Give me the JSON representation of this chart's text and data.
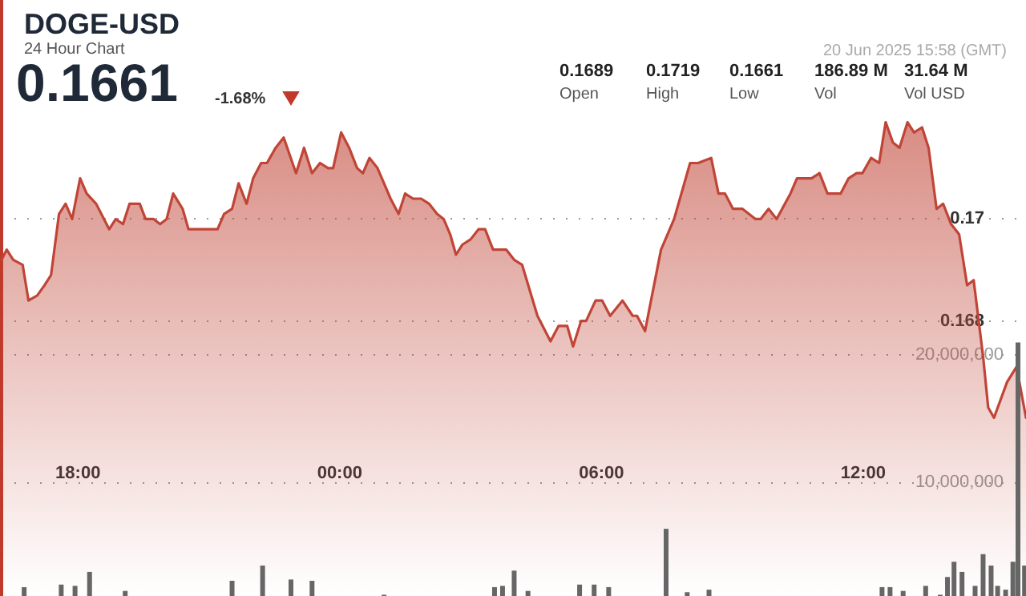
{
  "chart_data": {
    "type": "area",
    "title": "DOGE-USD",
    "subtitle": "24 Hour Chart",
    "annotations": [
      "0.1661",
      "-1.68%",
      "20 Jun 2025 15:58 (GMT)",
      "0.1689",
      "Open",
      "0.1719",
      "High",
      "0.1661",
      "Low",
      "186.89 M",
      "Vol",
      "31.64 M",
      "Vol USD"
    ],
    "xlim": [
      "2025-06-19T16:15",
      "2025-06-20T15:44"
    ],
    "xticks": [
      {
        "value": "2025-06-19T18:00",
        "label": "18:00"
      },
      {
        "value": "2025-06-20T00:00",
        "label": "00:00"
      },
      {
        "value": "2025-06-20T06:00",
        "label": "06:00"
      },
      {
        "value": "2025-06-20T12:00",
        "label": "12:00"
      }
    ],
    "ylim": [
      0.1626,
      0.1743
    ],
    "yticks": [
      0.168,
      0.17
    ],
    "y2lim": [
      1000000,
      48000000
    ],
    "y2ticks": [
      {
        "value": 10000000,
        "label": "10,000,000"
      },
      {
        "value": 20000000,
        "label": "20,000,000"
      }
    ],
    "grid": "y",
    "marker": "none",
    "line_style": "solid",
    "series": [
      {
        "color": "#c04537",
        "x": [
          "2025-06-19T16:15",
          "2025-06-19T16:22",
          "2025-06-19T16:31",
          "2025-06-19T16:44",
          "2025-06-19T16:52",
          "2025-06-19T17:04",
          "2025-06-19T17:14",
          "2025-06-19T17:23",
          "2025-06-19T17:34",
          "2025-06-19T17:43",
          "2025-06-19T17:52",
          "2025-06-19T18:03",
          "2025-06-19T18:12",
          "2025-06-19T18:25",
          "2025-06-19T18:43",
          "2025-06-19T18:52",
          "2025-06-19T19:02",
          "2025-06-19T19:11",
          "2025-06-19T19:25",
          "2025-06-19T19:33",
          "2025-06-19T19:44",
          "2025-06-19T19:53",
          "2025-06-19T20:02",
          "2025-06-19T20:11",
          "2025-06-19T20:24",
          "2025-06-19T20:32",
          "2025-06-19T20:44",
          "2025-06-19T21:01",
          "2025-06-19T21:12",
          "2025-06-19T21:21",
          "2025-06-19T21:32",
          "2025-06-19T21:41",
          "2025-06-19T21:52",
          "2025-06-19T22:01",
          "2025-06-19T22:12",
          "2025-06-19T22:20",
          "2025-06-19T22:32",
          "2025-06-19T22:43",
          "2025-06-19T23:00",
          "2025-06-19T23:11",
          "2025-06-19T23:22",
          "2025-06-19T23:33",
          "2025-06-19T23:44",
          "2025-06-19T23:51",
          "2025-06-20T00:02",
          "2025-06-20T00:13",
          "2025-06-20T00:24",
          "2025-06-20T00:32",
          "2025-06-20T00:41",
          "2025-06-20T00:52",
          "2025-06-20T01:01",
          "2025-06-20T01:10",
          "2025-06-20T01:21",
          "2025-06-20T01:30",
          "2025-06-20T01:41",
          "2025-06-20T01:52",
          "2025-06-20T02:03",
          "2025-06-20T02:14",
          "2025-06-20T02:23",
          "2025-06-20T02:32",
          "2025-06-20T02:40",
          "2025-06-20T02:49",
          "2025-06-20T03:00",
          "2025-06-20T03:11",
          "2025-06-20T03:20",
          "2025-06-20T03:31",
          "2025-06-20T03:49",
          "2025-06-20T04:00",
          "2025-06-20T04:11",
          "2025-06-20T04:32",
          "2025-06-20T04:50",
          "2025-06-20T05:01",
          "2025-06-20T05:13",
          "2025-06-20T05:21",
          "2025-06-20T05:32",
          "2025-06-20T05:39",
          "2025-06-20T05:52",
          "2025-06-20T06:01",
          "2025-06-20T06:12",
          "2025-06-20T06:29",
          "2025-06-20T06:43",
          "2025-06-20T06:49",
          "2025-06-20T07:00",
          "2025-06-20T07:22",
          "2025-06-20T07:40",
          "2025-06-20T08:02",
          "2025-06-20T08:13",
          "2025-06-20T08:31",
          "2025-06-20T08:41",
          "2025-06-20T08:50",
          "2025-06-20T09:01",
          "2025-06-20T09:14",
          "2025-06-20T09:32",
          "2025-06-20T09:39",
          "2025-06-20T09:50",
          "2025-06-20T10:01",
          "2025-06-20T10:20",
          "2025-06-20T10:29",
          "2025-06-20T10:43",
          "2025-06-20T10:49",
          "2025-06-20T11:00",
          "2025-06-20T11:11",
          "2025-06-20T11:29",
          "2025-06-20T11:40",
          "2025-06-20T11:51",
          "2025-06-20T11:59",
          "2025-06-20T12:11",
          "2025-06-20T12:22",
          "2025-06-20T12:31",
          "2025-06-20T12:41",
          "2025-06-20T12:50",
          "2025-06-20T13:01",
          "2025-06-20T13:10",
          "2025-06-20T13:21",
          "2025-06-20T13:30",
          "2025-06-20T13:41",
          "2025-06-20T13:50",
          "2025-06-20T14:01",
          "2025-06-20T14:12",
          "2025-06-20T14:23",
          "2025-06-20T14:32",
          "2025-06-20T14:45",
          "2025-06-20T14:52",
          "2025-06-20T15:00",
          "2025-06-20T15:18",
          "2025-06-20T15:31",
          "2025-06-20T15:44"
        ],
        "values": [
          0.1692,
          0.1694,
          0.1692,
          0.1691,
          0.1684,
          0.1685,
          0.1687,
          0.1689,
          0.1701,
          0.1703,
          0.17,
          0.1708,
          0.1705,
          0.1703,
          0.1698,
          0.17,
          0.1699,
          0.1703,
          0.1703,
          0.17,
          0.17,
          0.1699,
          0.17,
          0.1705,
          0.1702,
          0.1698,
          0.1698,
          0.1698,
          0.1698,
          0.1701,
          0.1702,
          0.1707,
          0.1703,
          0.1708,
          0.1711,
          0.1711,
          0.1714,
          0.1716,
          0.1709,
          0.1714,
          0.1709,
          0.1711,
          0.171,
          0.171,
          0.1717,
          0.1714,
          0.171,
          0.1709,
          0.1712,
          0.171,
          0.1707,
          0.1704,
          0.1701,
          0.1705,
          0.1704,
          0.1704,
          0.1703,
          0.1701,
          0.17,
          0.1697,
          0.1693,
          0.1695,
          0.1696,
          0.1698,
          0.1698,
          0.1694,
          0.1694,
          0.1692,
          0.1691,
          0.1681,
          0.1676,
          0.1679,
          0.1679,
          0.1675,
          0.168,
          0.168,
          0.1684,
          0.1684,
          0.1681,
          0.1684,
          0.1681,
          0.1681,
          0.1678,
          0.1694,
          0.17,
          0.1711,
          0.1711,
          0.1712,
          0.1705,
          0.1705,
          0.1702,
          0.1702,
          0.17,
          0.17,
          0.1702,
          0.17,
          0.1705,
          0.1708,
          0.1708,
          0.1708,
          0.1709,
          0.1705,
          0.1705,
          0.1708,
          0.1709,
          0.1709,
          0.1712,
          0.1711,
          0.1719,
          0.1715,
          0.1714,
          0.1719,
          0.1717,
          0.1718,
          0.1714,
          0.1702,
          0.1703,
          0.1699,
          0.1697,
          0.1687,
          0.1688,
          0.1673,
          0.1663,
          0.1661,
          0.1668,
          0.1671,
          0.1661
        ]
      },
      {
        "type": "bar",
        "axis": "y2",
        "color": "#666666",
        "x": [
          "2025-06-19T16:46",
          "2025-06-19T17:37",
          "2025-06-19T17:56",
          "2025-06-19T18:16",
          "2025-06-19T19:05",
          "2025-06-19T21:32",
          "2025-06-19T22:14",
          "2025-06-19T22:53",
          "2025-06-19T23:22",
          "2025-06-20T01:01",
          "2025-06-20T03:33",
          "2025-06-20T03:44",
          "2025-06-20T04:00",
          "2025-06-20T04:19",
          "2025-06-20T05:30",
          "2025-06-20T05:50",
          "2025-06-20T06:10",
          "2025-06-20T07:29",
          "2025-06-20T07:58",
          "2025-06-20T08:28",
          "2025-06-20T12:26",
          "2025-06-20T12:37",
          "2025-06-20T12:55",
          "2025-06-20T13:26",
          "2025-06-20T13:46",
          "2025-06-20T13:56",
          "2025-06-20T14:05",
          "2025-06-20T14:16",
          "2025-06-20T14:34",
          "2025-06-20T14:45",
          "2025-06-20T14:56",
          "2025-06-20T15:05",
          "2025-06-20T15:16",
          "2025-06-20T15:26",
          "2025-06-20T15:33",
          "2025-06-20T15:42"
        ],
        "values": [
          1700000,
          1900000,
          1800000,
          2900000,
          1400000,
          2200000,
          3400000,
          2300000,
          2200000,
          1100000,
          1700000,
          1800000,
          3000000,
          1400000,
          1900000,
          1900000,
          1700000,
          6300000,
          1300000,
          1500000,
          1700000,
          1700000,
          1400000,
          1800000,
          1100000,
          2500000,
          3700000,
          2900000,
          1800000,
          4300000,
          3400000,
          1800000,
          1500000,
          3700000,
          21000000,
          3400000
        ]
      }
    ]
  }
}
